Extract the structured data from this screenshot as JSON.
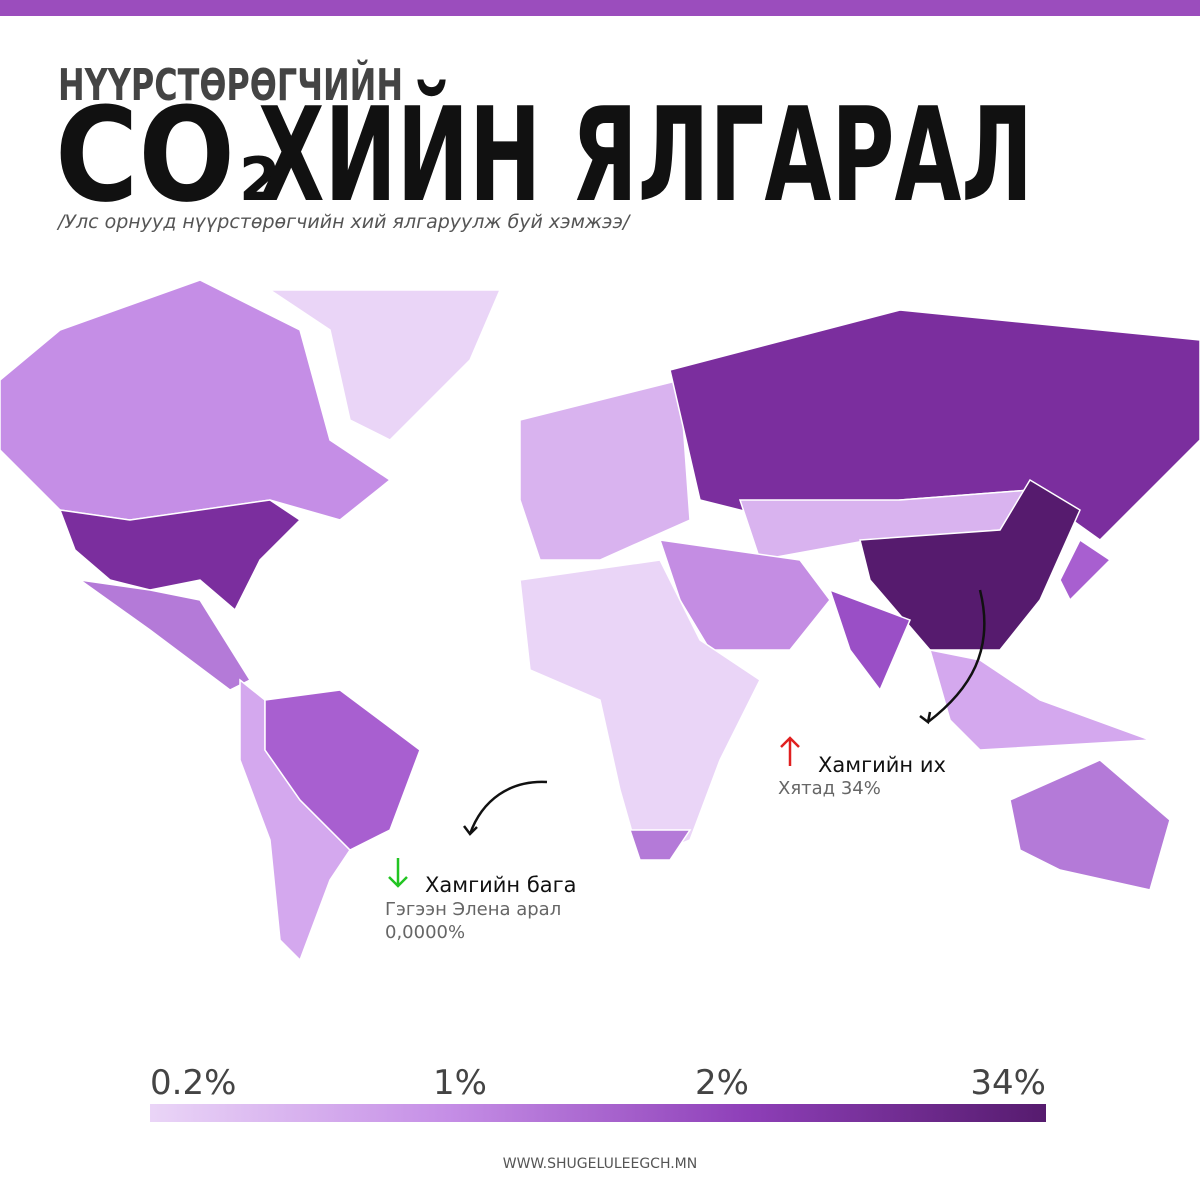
{
  "header": {
    "kicker": "НҮҮРСТӨРӨГЧИЙН",
    "title": {
      "prefix": "CO",
      "subscript": "2",
      "text": "ХИЙН ЯЛГАРАЛ"
    },
    "subtitle": "/Улс орнууд нүүрстөрөгчийн хий ялгаруулж буй хэмжээ/"
  },
  "annotations": {
    "max": {
      "heading": "Хамгийн их",
      "detail": "Хятад 34%"
    },
    "min": {
      "heading": "Хамгийн бага",
      "detail": "Гэгээн Элена арал",
      "value": "0,0000%"
    }
  },
  "legend": {
    "labels": [
      "0.2%",
      "1%",
      "2%",
      "34%"
    ],
    "colors": [
      "#ead5f7",
      "#c58ee6",
      "#8e3fb8",
      "#561b6e"
    ]
  },
  "footer": "WWW.SHUGELULEEGCH.MN"
}
